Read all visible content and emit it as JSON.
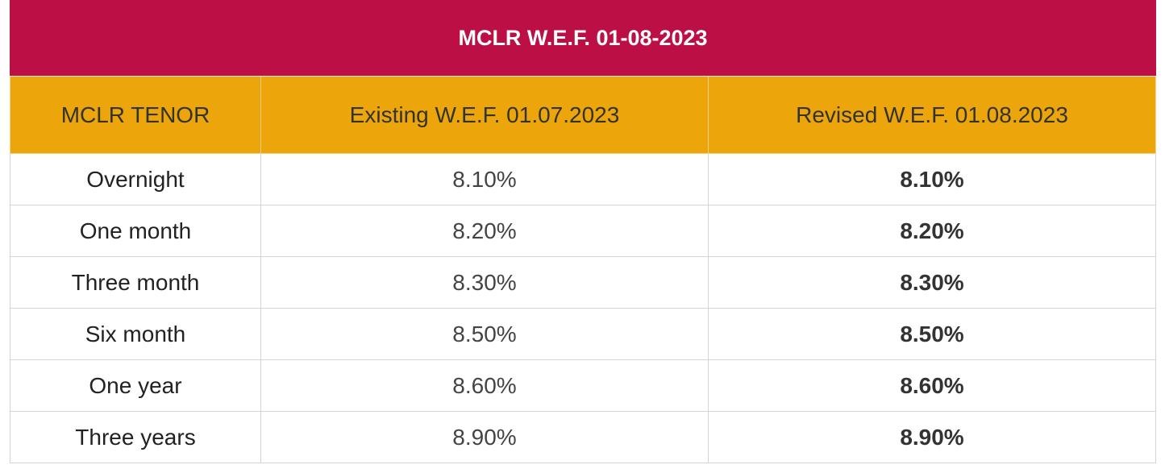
{
  "table": {
    "title": "MCLR W.E.F. 01-08-2023",
    "headers": {
      "tenor": "MCLR TENOR",
      "existing": "Existing W.E.F. 01.07.2023",
      "revised": "Revised W.E.F. 01.08.2023"
    },
    "rows": [
      {
        "tenor": "Overnight",
        "existing": "8.10%",
        "revised": "8.10%"
      },
      {
        "tenor": "One month",
        "existing": "8.20%",
        "revised": "8.20%"
      },
      {
        "tenor": "Three month",
        "existing": "8.30%",
        "revised": "8.30%"
      },
      {
        "tenor": "Six month",
        "existing": "8.50%",
        "revised": "8.50%"
      },
      {
        "tenor": "One year",
        "existing": "8.60%",
        "revised": "8.60%"
      },
      {
        "tenor": "Three years",
        "existing": "8.90%",
        "revised": "8.90%"
      }
    ]
  },
  "colors": {
    "title_background": "#bb0f46",
    "header_background": "#eca50a"
  }
}
